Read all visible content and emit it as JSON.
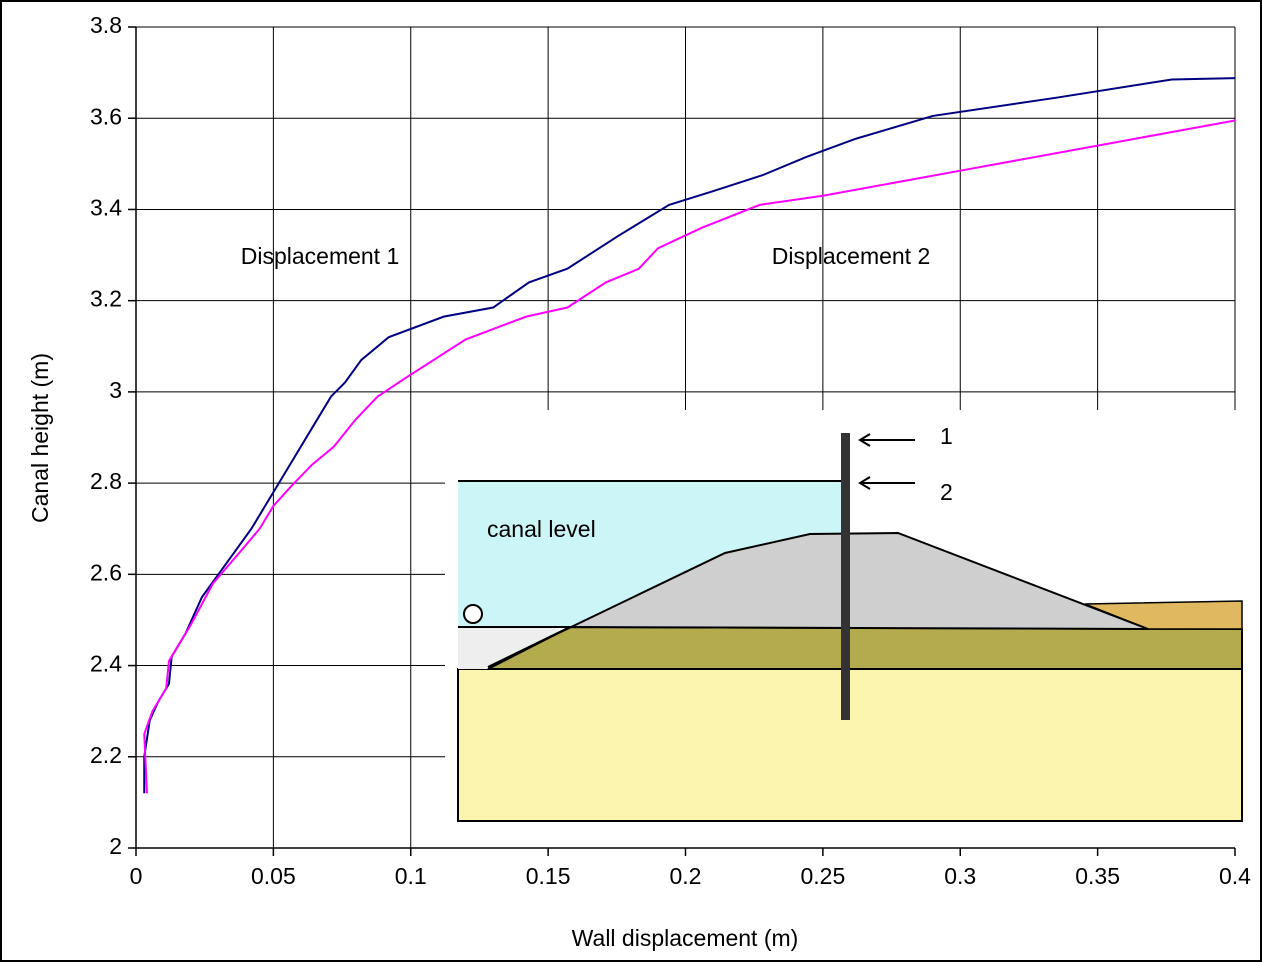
{
  "chart_data": {
    "type": "line",
    "xlabel": "Wall displacement (m)",
    "ylabel": "Canal height (m)",
    "series": [
      {
        "name": "Displacement 1",
        "color": "#000080",
        "x": [
          0.003,
          0.003,
          0.005,
          0.008,
          0.012,
          0.013,
          0.018,
          0.024,
          0.03,
          0.036,
          0.042,
          0.05,
          0.056,
          0.065,
          0.071,
          0.076,
          0.082,
          0.092,
          0.112,
          0.13,
          0.143,
          0.157,
          0.175,
          0.194,
          0.21,
          0.228,
          0.244,
          0.262,
          0.29,
          0.335,
          0.377,
          0.4
        ],
        "values": [
          2.12,
          2.2,
          2.28,
          2.32,
          2.36,
          2.42,
          2.47,
          2.55,
          2.6,
          2.65,
          2.7,
          2.78,
          2.84,
          2.93,
          2.99,
          3.02,
          3.07,
          3.12,
          3.165,
          3.185,
          3.24,
          3.27,
          3.34,
          3.41,
          3.44,
          3.475,
          3.515,
          3.555,
          3.605,
          3.645,
          3.685,
          3.688
        ]
      },
      {
        "name": "Displacement 2",
        "color": "#ff00ff",
        "x": [
          0.004,
          0.003,
          0.006,
          0.011,
          0.012,
          0.02,
          0.028,
          0.038,
          0.045,
          0.05,
          0.056,
          0.064,
          0.072,
          0.08,
          0.088,
          0.098,
          0.12,
          0.142,
          0.157,
          0.171,
          0.183,
          0.19,
          0.206,
          0.227,
          0.25,
          0.3,
          0.35,
          0.4
        ],
        "values": [
          2.12,
          2.25,
          2.3,
          2.35,
          2.41,
          2.49,
          2.58,
          2.65,
          2.7,
          2.75,
          2.79,
          2.84,
          2.88,
          2.94,
          2.99,
          3.03,
          3.115,
          3.165,
          3.185,
          3.24,
          3.27,
          3.315,
          3.36,
          3.41,
          3.43,
          3.485,
          3.54,
          3.595
        ]
      }
    ],
    "xlim": [
      0,
      0.4
    ],
    "xticks": [
      0,
      0.05,
      0.1,
      0.15,
      0.2,
      0.25,
      0.3,
      0.35,
      0.4
    ],
    "ylim": [
      2,
      3.8
    ],
    "yticks": [
      2,
      2.2,
      2.4,
      2.6,
      2.8,
      3,
      3.2,
      3.4,
      3.6,
      3.8
    ],
    "grid": true,
    "inset_labels": [
      "canal level",
      "1",
      "2"
    ]
  }
}
